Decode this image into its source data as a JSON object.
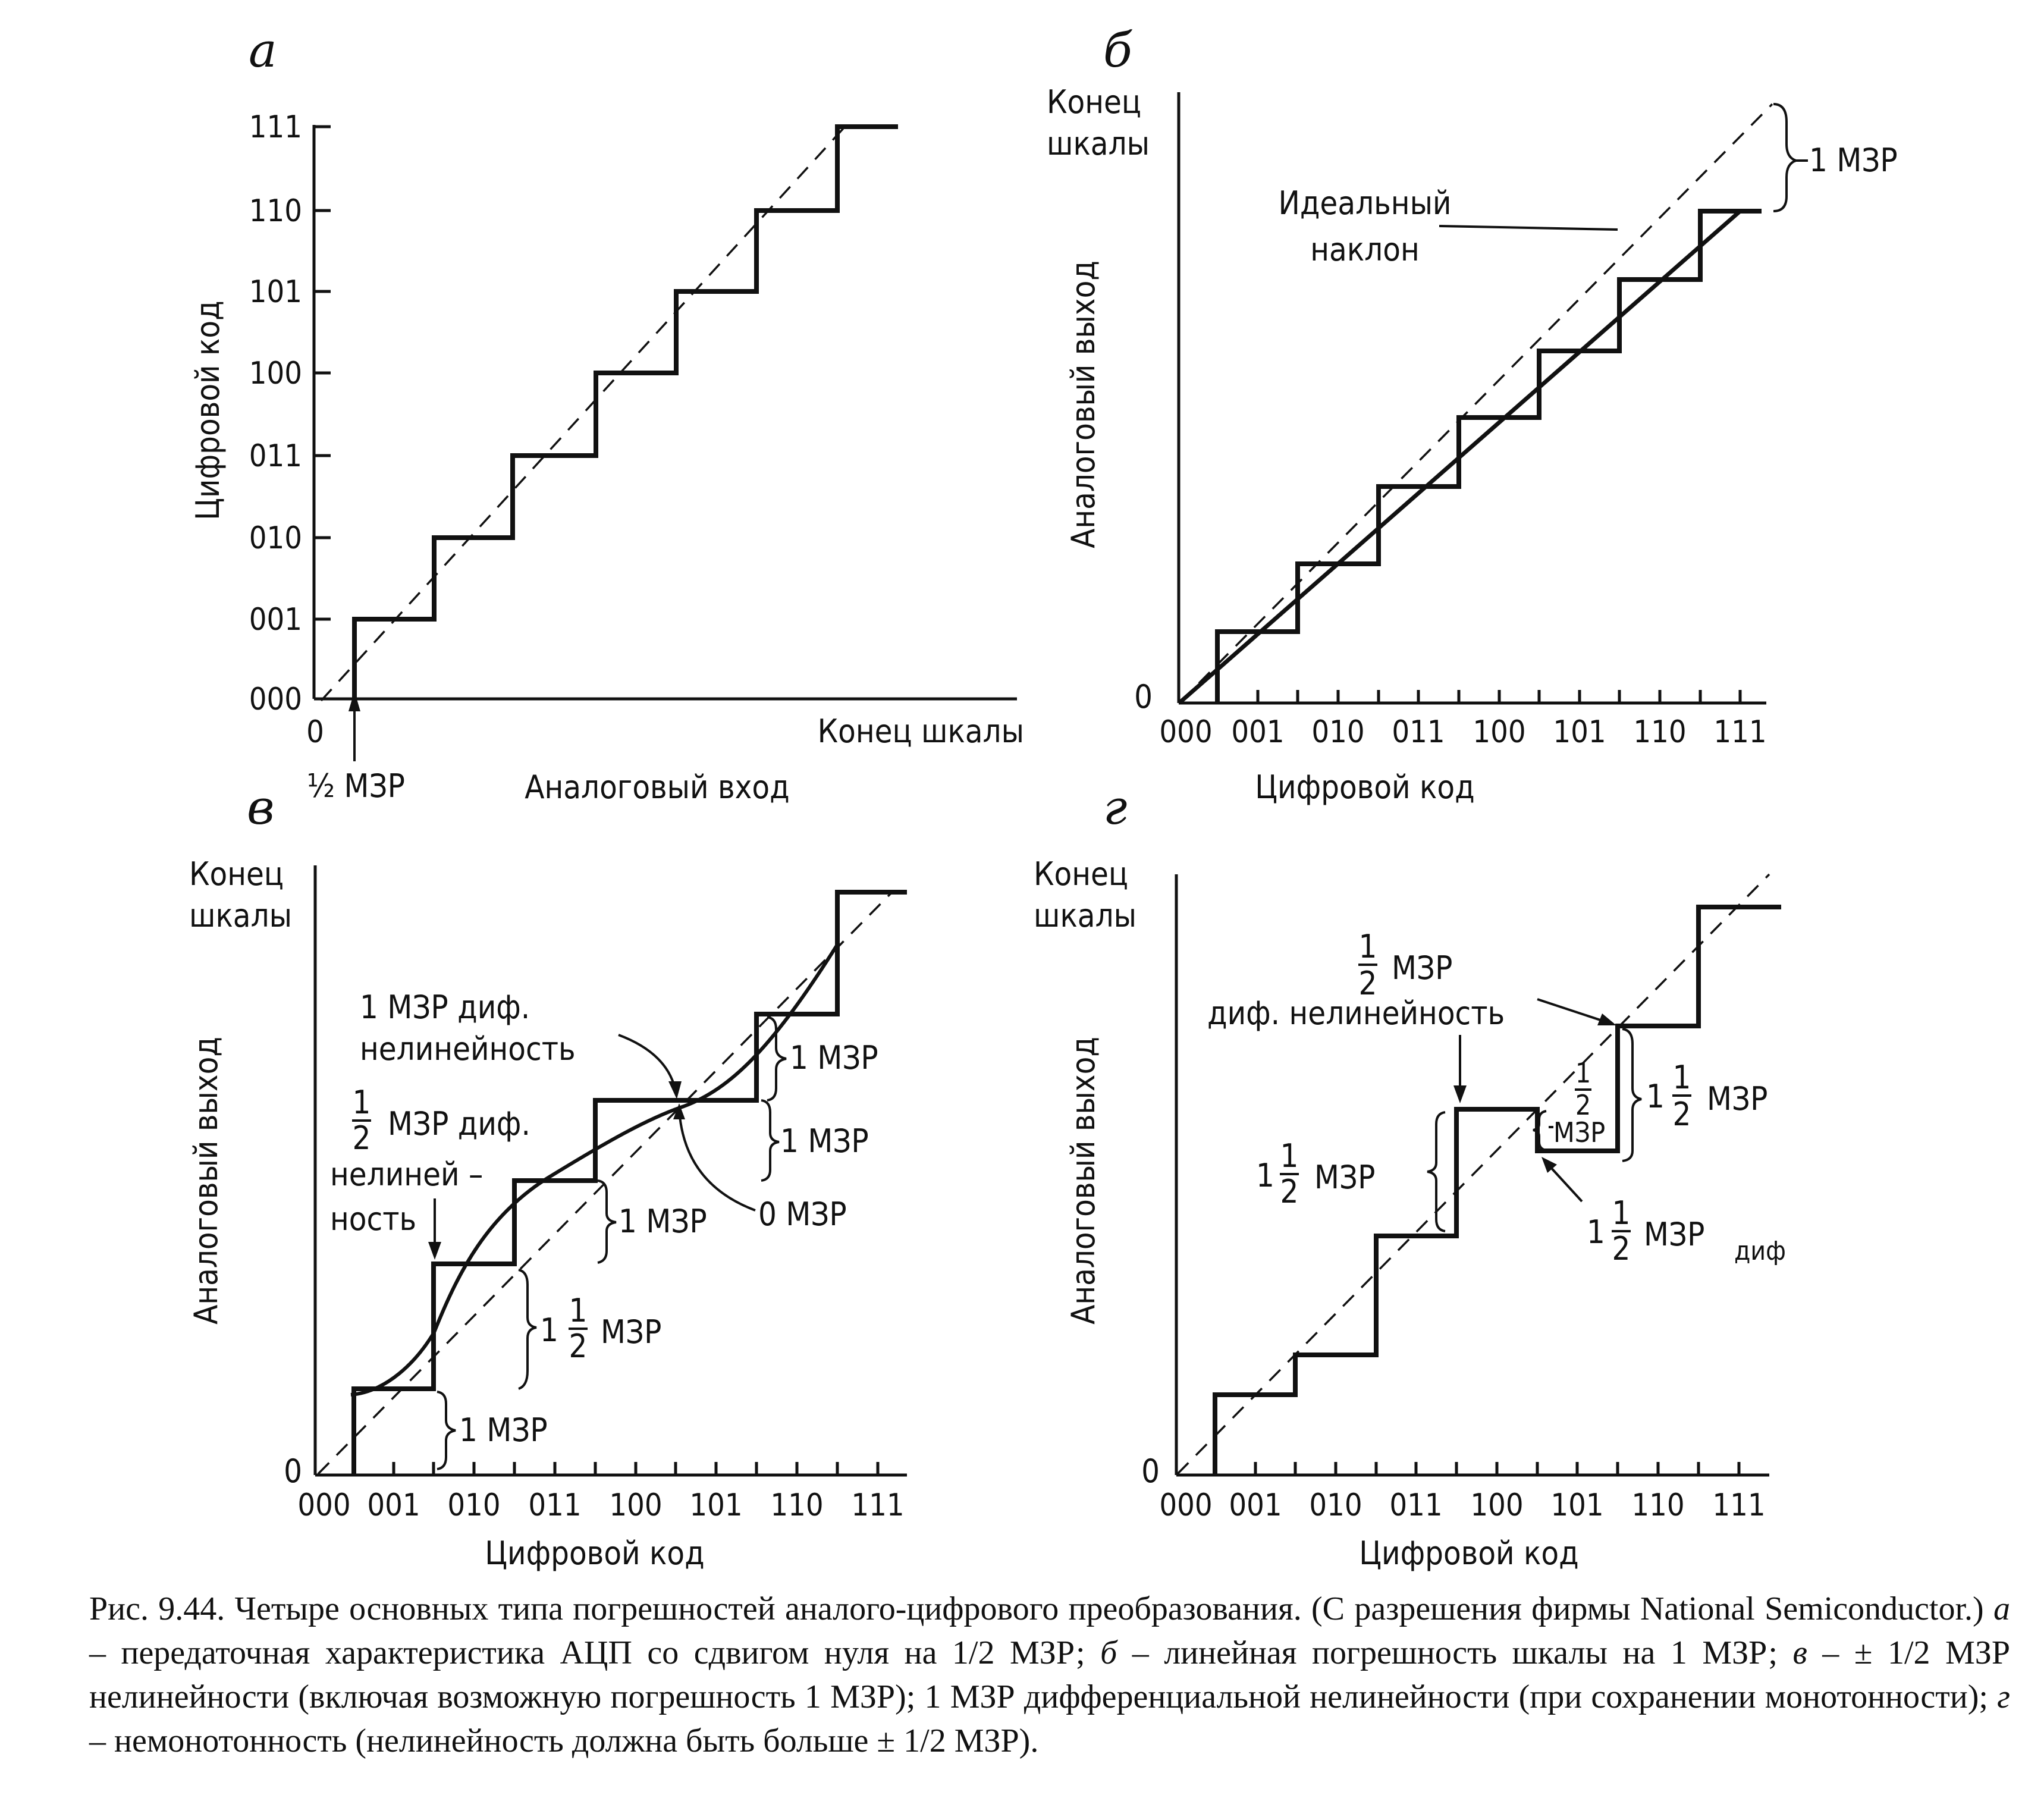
{
  "panels": {
    "a": {
      "letter": "а",
      "y_ticks": [
        "000",
        "001",
        "010",
        "011",
        "100",
        "101",
        "110",
        "111"
      ],
      "x_zero": "0",
      "x_end": "Конец  шкалы",
      "ylabel": "Цифровой  код",
      "xlabel": "Аналоговый  вход",
      "half_lsb": "½ МЗР"
    },
    "b": {
      "letter": "б",
      "y_top_1": "Конец",
      "y_top_2": "шкалы",
      "y_zero": "0",
      "x_ticks": [
        "000",
        "001",
        "010",
        "011",
        "100",
        "101",
        "110",
        "111"
      ],
      "ylabel": "Аналоговый  выход",
      "xlabel": "Цифровой  код",
      "ideal_1": "Идеальный",
      "ideal_2": "наклон",
      "lsb": "1 МЗР"
    },
    "c": {
      "letter": "в",
      "y_top_1": "Конец",
      "y_top_2": "шкалы",
      "y_zero": "0",
      "x_ticks": [
        "000",
        "001",
        "010",
        "011",
        "100",
        "101",
        "110",
        "111"
      ],
      "ylabel": "Аналоговый  выход",
      "xlabel": "Цифровой  код",
      "dnl1_1": "1 МЗР  диф.",
      "dnl1_2": "нелинейность",
      "half_num": "1",
      "half_den": "2",
      "dnlh_1": "МЗР  диф.",
      "dnlh_2": "нелиней –",
      "dnlh_3": "ность",
      "lsb1": "1 МЗР",
      "lsb2": "1 МЗР",
      "lsb3": "1 МЗР",
      "lsb4": "1 МЗР",
      "zero_lsb": "0 МЗР",
      "one": "1",
      "mzr": "МЗР"
    },
    "d": {
      "letter": "г",
      "y_top_1": "Конец",
      "y_top_2": "шкалы",
      "y_zero": "0",
      "x_ticks": [
        "000",
        "001",
        "010",
        "011",
        "100",
        "101",
        "110",
        "111"
      ],
      "ylabel": "Аналоговый  выход",
      "xlabel": "Цифровой  код",
      "top_ann_2": "МЗР",
      "top_ann_3": "диф. нелинейность",
      "one": "1",
      "num": "1",
      "den": "2",
      "mzr": "МЗР",
      "sub": "диф"
    }
  },
  "caption": {
    "text_1": "Рис. 9.44. Четыре основных типа погрешностей аналого-цифрового преобразования. (С разрешения фирмы National Semiconductor.) ",
    "a": "а",
    "text_2": " – передаточная характеристика АЦП со сдвигом нуля на 1/2 МЗР; ",
    "b": "б",
    "text_3": " – линейная погрешность шкалы на 1 МЗР; ",
    "c": "в",
    "text_4": " – ± 1/2 МЗР нелинейности (включая возможную погрешность 1 МЗР); 1 МЗР дифференциальной нелинейности (при сохранении монотонности); ",
    "d": "г",
    "text_5": " – немонотонность (нелинейность должна быть больше ± 1/2 МЗР)."
  }
}
